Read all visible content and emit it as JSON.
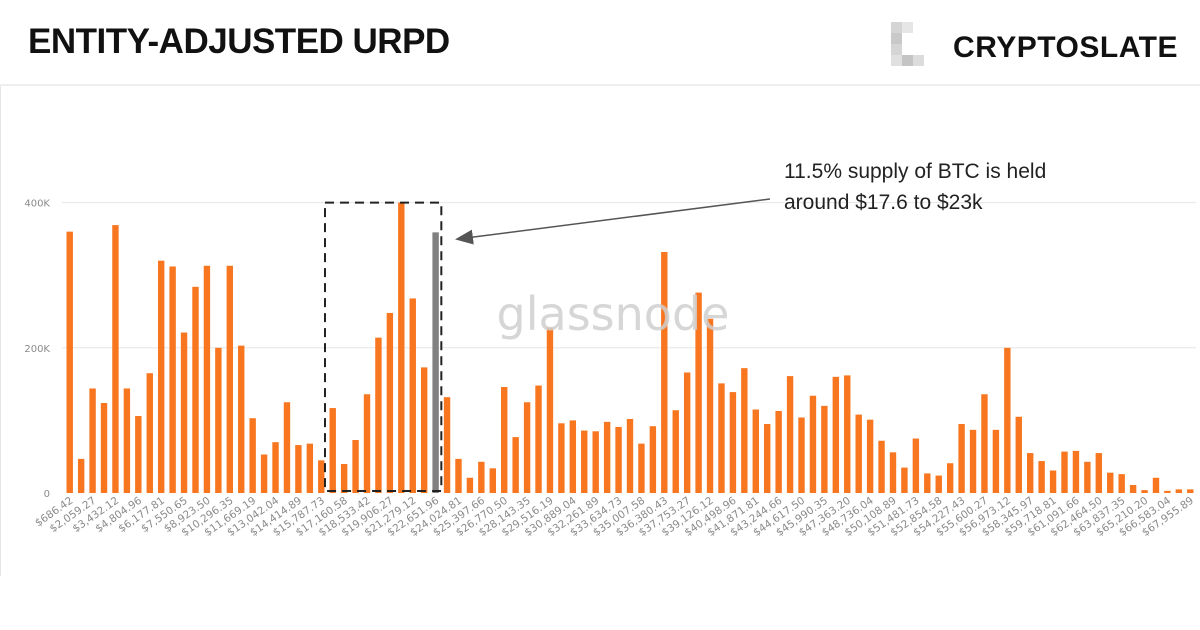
{
  "header": {
    "title": "ENTITY-ADJUSTED URPD",
    "brand": "CRYPTOSLATE",
    "brand_mark": "cryptoslate-logo-icon"
  },
  "watermark": "glassnode",
  "annotation": {
    "text": "11.5% supply of BTC is held around $17.6 to $23k"
  },
  "colors": {
    "bar": "#f7761f",
    "highlight_bar": "#808080",
    "axis_text": "#8a8a8a",
    "grid": "#e6e6e6"
  },
  "chart_data": {
    "type": "bar",
    "title": "",
    "xlabel": "",
    "ylabel": "",
    "ylim": [
      0,
      500000
    ],
    "y_ticks": [
      {
        "value": 0,
        "label": "0"
      },
      {
        "value": 200000,
        "label": "200K"
      },
      {
        "value": 400000,
        "label": "400K"
      }
    ],
    "x_tick_labels": [
      "$686.42",
      "$2,059.27",
      "$3,432.12",
      "$4,804.96",
      "$6,177.81",
      "$7,550.65",
      "$8,923.50",
      "$10,296.35",
      "$11,669.19",
      "$13,042.04",
      "$14,414.89",
      "$15,787.73",
      "$17,160.58",
      "$18,533.42",
      "$19,906.27",
      "$21,279.12",
      "$22,651.96",
      "$24,024.81",
      "$25,397.66",
      "$26,770.50",
      "$28,143.35",
      "$29,516.19",
      "$30,889.04",
      "$32,261.89",
      "$33,634.73",
      "$35,007.58",
      "$36,380.43",
      "$37,753.27",
      "$39,126.12",
      "$40,498.96",
      "$41,871.81",
      "$43,244.66",
      "$44,617.50",
      "$45,990.35",
      "$47,363.20",
      "$48,736.04",
      "$50,108.89",
      "$51,481.73",
      "$52,854.58",
      "$54,227.43",
      "$55,600.27",
      "$56,973.12",
      "$58,345.97",
      "$59,718.81",
      "$61,091.66",
      "$62,464.50",
      "$63,837.35",
      "$65,210.20",
      "$66,583.04",
      "$67,955.89"
    ],
    "x_tick_every": 2,
    "values": [
      360000,
      47000,
      144000,
      124000,
      369000,
      144000,
      106000,
      165000,
      320000,
      312000,
      221000,
      284000,
      313000,
      200000,
      313000,
      203000,
      103000,
      53000,
      70000,
      125000,
      66000,
      68000,
      45000,
      117000,
      40000,
      73000,
      136000,
      214000,
      248000,
      400000,
      268000,
      173000,
      359000,
      132000,
      47000,
      21000,
      43000,
      34000,
      146000,
      77000,
      125000,
      148000,
      228000,
      96000,
      100000,
      86000,
      85000,
      98000,
      91000,
      102000,
      68000,
      92000,
      332000,
      114000,
      166000,
      276000,
      240000,
      151000,
      139000,
      172000,
      115000,
      95000,
      113000,
      161000,
      104000,
      134000,
      120000,
      160000,
      162000,
      108000,
      101000,
      72000,
      56000,
      35000,
      75000,
      27000,
      24000,
      41000,
      95000,
      87000,
      136000,
      87000,
      200000,
      105000,
      55000,
      44000,
      31000,
      57000,
      58000,
      43000,
      55000,
      28000,
      26000,
      11000,
      4000,
      21000,
      3000,
      5000,
      5000
    ],
    "highlight_index": 32,
    "highlight_box": {
      "start_index": 23,
      "end_index": 32
    }
  }
}
